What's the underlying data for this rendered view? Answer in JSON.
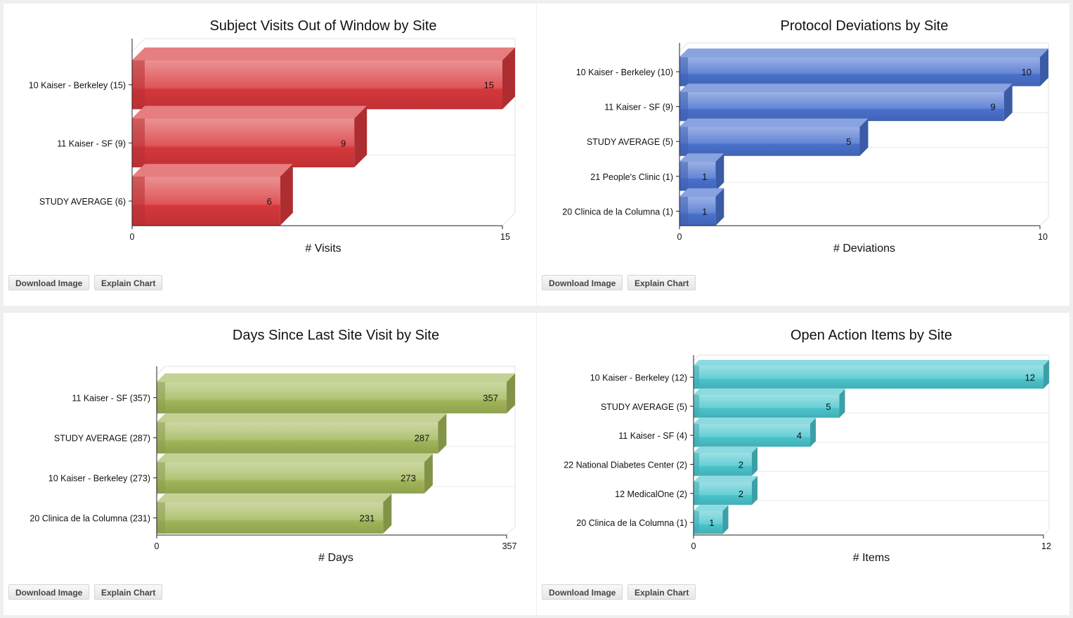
{
  "buttons": {
    "download": "Download Image",
    "explain": "Explain Chart"
  },
  "chart_data": [
    {
      "type": "bar",
      "orientation": "horizontal",
      "title": "Subject Visits Out of Window by Site",
      "xlabel": "# Visits",
      "categories": [
        "10 Kaiser - Berkeley (15)",
        "11 Kaiser - SF (9)",
        "STUDY AVERAGE (6)"
      ],
      "values": [
        15,
        9,
        6
      ],
      "xlim": [
        0,
        15
      ],
      "color": "#d9383c"
    },
    {
      "type": "bar",
      "orientation": "horizontal",
      "title": "Protocol Deviations by Site",
      "xlabel": "# Deviations",
      "categories": [
        "10 Kaiser - Berkeley (10)",
        "11 Kaiser - SF (9)",
        "STUDY AVERAGE (5)",
        "21 People's Clinic (1)",
        "20 Clinica de la Columna (1)"
      ],
      "values": [
        10,
        9,
        5,
        1,
        1
      ],
      "xlim": [
        0,
        10
      ],
      "color": "#4a72cf"
    },
    {
      "type": "bar",
      "orientation": "horizontal",
      "title": "Days Since Last Site Visit by Site",
      "xlabel": "# Days",
      "categories": [
        "11 Kaiser - SF (357)",
        "STUDY AVERAGE (287)",
        "10 Kaiser - Berkeley (273)",
        "20 Clinica de la Columna (231)"
      ],
      "values": [
        357,
        287,
        273,
        231
      ],
      "xlim": [
        0,
        357
      ],
      "color": "#a3b85a"
    },
    {
      "type": "bar",
      "orientation": "horizontal",
      "title": "Open Action Items by Site",
      "xlabel": "# Items",
      "categories": [
        "10 Kaiser - Berkeley (12)",
        "STUDY AVERAGE (5)",
        "11 Kaiser - SF (4)",
        "22 National Diabetes Center (2)",
        "12 MedicalOne (2)",
        "20 Clinica de la Columna (1)"
      ],
      "values": [
        12,
        5,
        4,
        2,
        2,
        1
      ],
      "xlim": [
        0,
        12
      ],
      "color": "#4cc7cf"
    }
  ]
}
